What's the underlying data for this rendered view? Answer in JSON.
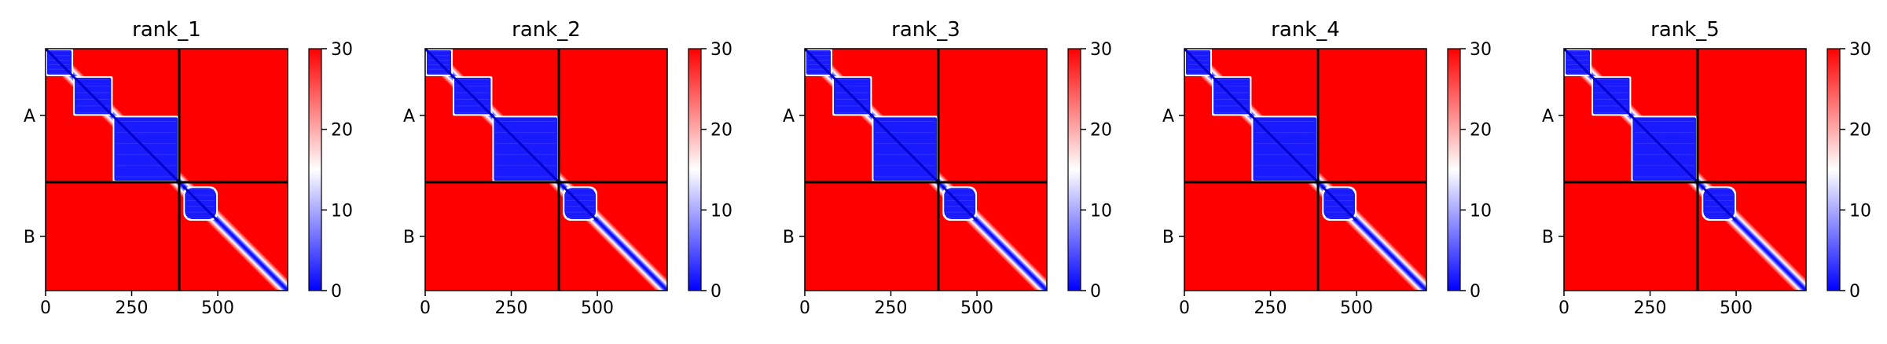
{
  "chart_data": [
    {
      "type": "heatmap",
      "title": "rank_1",
      "x_ticks": [
        0,
        250,
        500
      ],
      "xlim": [
        0,
        703
      ],
      "y_ticks": [
        "A",
        "B"
      ],
      "chain_boundary": 388,
      "chains": [
        {
          "name": "A",
          "range": [
            0,
            388
          ]
        },
        {
          "name": "B",
          "range": [
            388,
            703
          ]
        }
      ],
      "domain_blocks": [
        [
          0,
          80
        ],
        [
          80,
          195
        ],
        [
          195,
          388
        ],
        [
          400,
          500
        ]
      ],
      "colorbar": {
        "min": 0,
        "max": 30,
        "ticks": [
          0,
          10,
          20,
          30
        ],
        "colormap": [
          "#0000ff",
          "#ffffff",
          "#ff0000"
        ]
      }
    },
    {
      "type": "heatmap",
      "title": "rank_2",
      "x_ticks": [
        0,
        250,
        500
      ],
      "xlim": [
        0,
        703
      ],
      "y_ticks": [
        "A",
        "B"
      ],
      "chain_boundary": 388,
      "chains": [
        {
          "name": "A",
          "range": [
            0,
            388
          ]
        },
        {
          "name": "B",
          "range": [
            388,
            703
          ]
        }
      ],
      "domain_blocks": [
        [
          0,
          80
        ],
        [
          80,
          195
        ],
        [
          195,
          388
        ],
        [
          400,
          500
        ]
      ],
      "colorbar": {
        "min": 0,
        "max": 30,
        "ticks": [
          0,
          10,
          20,
          30
        ],
        "colormap": [
          "#0000ff",
          "#ffffff",
          "#ff0000"
        ]
      }
    },
    {
      "type": "heatmap",
      "title": "rank_3",
      "x_ticks": [
        0,
        250,
        500
      ],
      "xlim": [
        0,
        703
      ],
      "y_ticks": [
        "A",
        "B"
      ],
      "chain_boundary": 388,
      "chains": [
        {
          "name": "A",
          "range": [
            0,
            388
          ]
        },
        {
          "name": "B",
          "range": [
            388,
            703
          ]
        }
      ],
      "domain_blocks": [
        [
          0,
          80
        ],
        [
          80,
          195
        ],
        [
          195,
          388
        ],
        [
          400,
          500
        ]
      ],
      "colorbar": {
        "min": 0,
        "max": 30,
        "ticks": [
          0,
          10,
          20,
          30
        ],
        "colormap": [
          "#0000ff",
          "#ffffff",
          "#ff0000"
        ]
      }
    },
    {
      "type": "heatmap",
      "title": "rank_4",
      "x_ticks": [
        0,
        250,
        500
      ],
      "xlim": [
        0,
        703
      ],
      "y_ticks": [
        "A",
        "B"
      ],
      "chain_boundary": 388,
      "chains": [
        {
          "name": "A",
          "range": [
            0,
            388
          ]
        },
        {
          "name": "B",
          "range": [
            388,
            703
          ]
        }
      ],
      "domain_blocks": [
        [
          0,
          80
        ],
        [
          80,
          195
        ],
        [
          195,
          388
        ],
        [
          400,
          500
        ]
      ],
      "colorbar": {
        "min": 0,
        "max": 30,
        "ticks": [
          0,
          10,
          20,
          30
        ],
        "colormap": [
          "#0000ff",
          "#ffffff",
          "#ff0000"
        ]
      }
    },
    {
      "type": "heatmap",
      "title": "rank_5",
      "x_ticks": [
        0,
        250,
        500
      ],
      "xlim": [
        0,
        703
      ],
      "y_ticks": [
        "A",
        "B"
      ],
      "chain_boundary": 388,
      "chains": [
        {
          "name": "A",
          "range": [
            0,
            388
          ]
        },
        {
          "name": "B",
          "range": [
            388,
            703
          ]
        }
      ],
      "domain_blocks": [
        [
          0,
          80
        ],
        [
          80,
          195
        ],
        [
          195,
          388
        ],
        [
          400,
          500
        ]
      ],
      "colorbar": {
        "min": 0,
        "max": 30,
        "ticks": [
          0,
          10,
          20,
          30
        ],
        "colormap": [
          "#0000ff",
          "#ffffff",
          "#ff0000"
        ]
      }
    }
  ]
}
